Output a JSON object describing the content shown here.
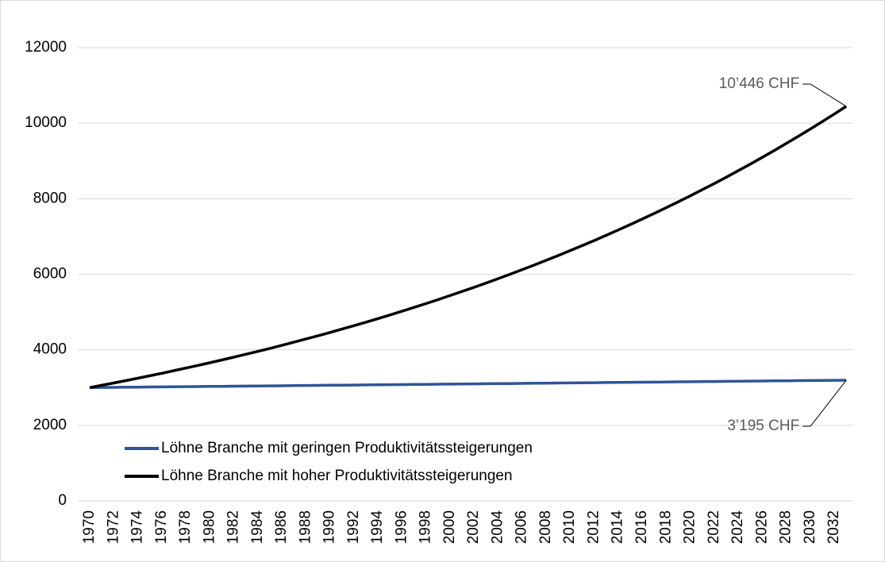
{
  "chart_data": {
    "type": "line",
    "categories": [
      "1970",
      null,
      "1972",
      null,
      "1974",
      null,
      "1976",
      null,
      "1978",
      null,
      "1980",
      null,
      "1982",
      null,
      "1984",
      null,
      "1986",
      null,
      "1988",
      null,
      "1990",
      null,
      "1992",
      null,
      "1994",
      null,
      "1996",
      null,
      "1998",
      null,
      "2000",
      null,
      "2002",
      null,
      "2004",
      null,
      "2006",
      null,
      "2008",
      null,
      "2010",
      null,
      "2012",
      null,
      "2014",
      null,
      "2016",
      null,
      "2018",
      null,
      "2020",
      null,
      "2022",
      null,
      "2024",
      null,
      "2026",
      null,
      "2028",
      null,
      "2030",
      null,
      "2032",
      null
    ],
    "series": [
      {
        "name": "Löhne Branche mit geringen Produktivitätssteigerungen",
        "color": "#2f5597",
        "values": [
          3000,
          3003,
          3006,
          3009,
          3012,
          3015,
          3018,
          3021,
          3024,
          3027,
          3030,
          3033,
          3036,
          3039,
          3042,
          3045,
          3048,
          3051,
          3055,
          3058,
          3061,
          3064,
          3067,
          3070,
          3073,
          3076,
          3079,
          3082,
          3085,
          3089,
          3092,
          3095,
          3098,
          3101,
          3104,
          3107,
          3110,
          3114,
          3117,
          3120,
          3123,
          3126,
          3129,
          3133,
          3136,
          3139,
          3142,
          3145,
          3148,
          3152,
          3155,
          3158,
          3161,
          3164,
          3168,
          3171,
          3174,
          3177,
          3180,
          3184,
          3187,
          3190,
          3193,
          3195
        ]
      },
      {
        "name": "Löhne Branche mit hoher Produktivitätssteigerungen",
        "color": "#000000",
        "values": [
          3000,
          3060,
          3121,
          3184,
          3247,
          3312,
          3378,
          3446,
          3515,
          3585,
          3657,
          3730,
          3805,
          3881,
          3958,
          4038,
          4118,
          4201,
          4285,
          4370,
          4458,
          4547,
          4638,
          4731,
          4825,
          4922,
          5020,
          5121,
          5223,
          5328,
          5434,
          5543,
          5654,
          5767,
          5882,
          6000,
          6120,
          6242,
          6367,
          6494,
          6624,
          6757,
          6892,
          7030,
          7170,
          7314,
          7460,
          7609,
          7761,
          7916,
          8075,
          8236,
          8401,
          8569,
          8740,
          8915,
          9093,
          9275,
          9461,
          9650,
          9843,
          10040,
          10241,
          10446
        ]
      }
    ],
    "annotations": [
      {
        "text": "10’446 CHF",
        "series": 1
      },
      {
        "text": "3’195 CHF",
        "series": 0
      }
    ],
    "ylim": [
      0,
      12000
    ],
    "yticks": [
      0,
      2000,
      4000,
      6000,
      8000,
      10000,
      12000
    ],
    "grid": true
  }
}
